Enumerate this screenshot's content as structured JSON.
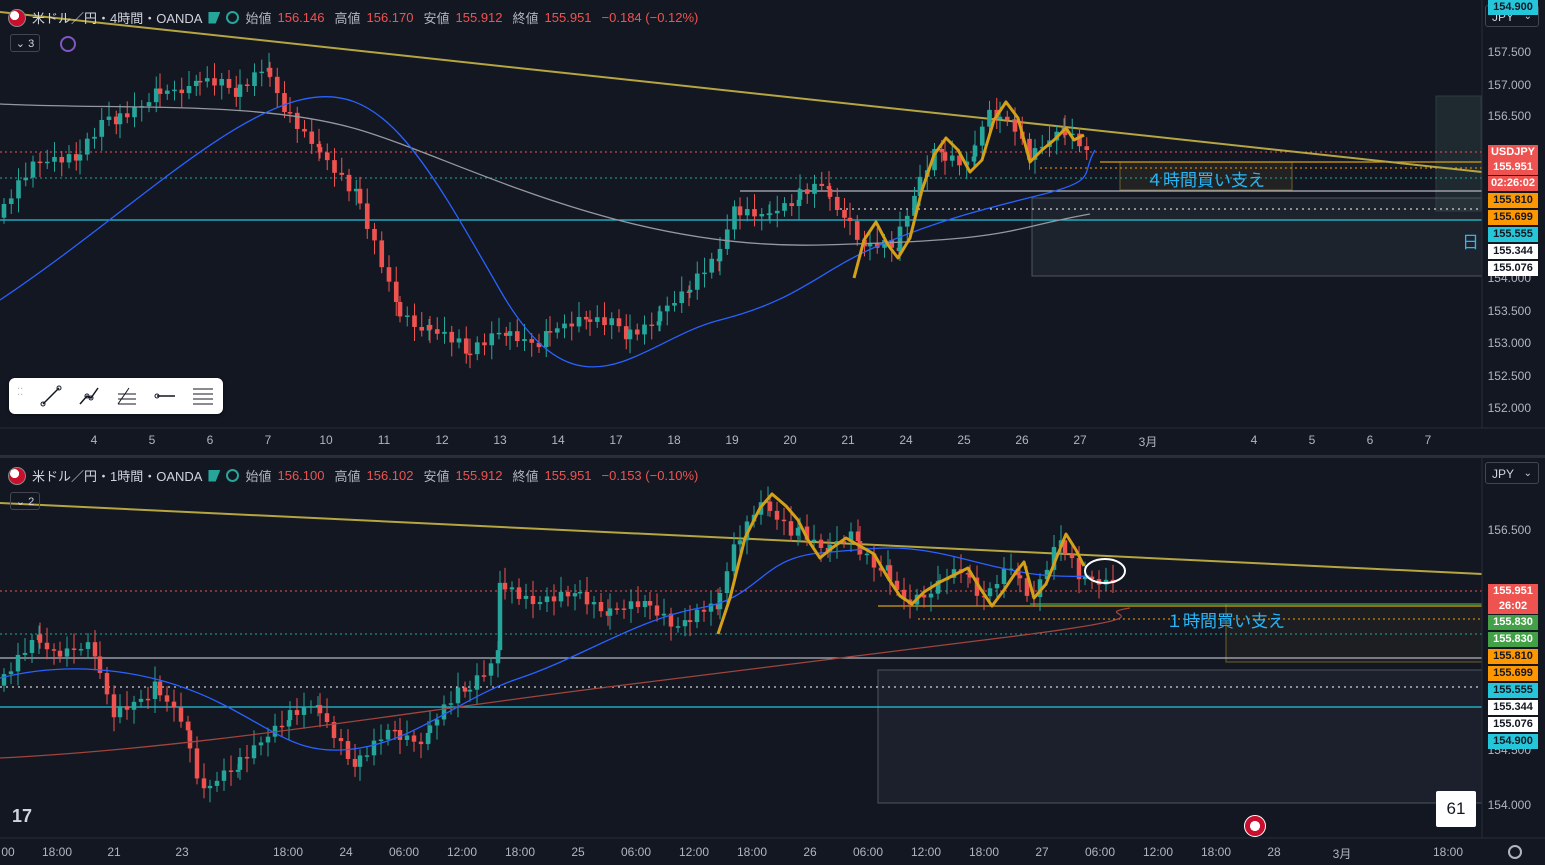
{
  "top_chart": {
    "symbol": "米ドル／円・4時間・OANDA",
    "open_label": "始値",
    "open": "156.146",
    "high_label": "高値",
    "high": "156.170",
    "low_label": "安値",
    "low": "155.912",
    "close_label": "終値",
    "close": "155.951",
    "change": "−0.184 (−0.12%)",
    "indicator_count": "3",
    "currency": "JPY",
    "price_axis": [
      "157.500",
      "157.000",
      "156.500",
      "154.000",
      "153.500",
      "153.000",
      "152.500",
      "152.000"
    ],
    "price_tags": [
      {
        "text": "USDJPY",
        "color": "#ef5350"
      },
      {
        "text": "155.951",
        "color": "#ef5350"
      },
      {
        "text": "02:26:02",
        "color": "#ef5350"
      },
      {
        "text": "155.810",
        "color": "#ff9800"
      },
      {
        "text": "155.699",
        "color": "#ff9800"
      },
      {
        "text": "155.555",
        "color": "#26c6da"
      },
      {
        "text": "155.344",
        "color": "#ffffff"
      },
      {
        "text": "155.076",
        "color": "#ffffff"
      },
      {
        "text": "154.900",
        "color": "#26c6da"
      }
    ],
    "time_axis": [
      "4",
      "5",
      "6",
      "7",
      "10",
      "11",
      "12",
      "13",
      "14",
      "17",
      "18",
      "19",
      "20",
      "21",
      "24",
      "25",
      "26",
      "27",
      "3月",
      "4",
      "5",
      "6",
      "7"
    ],
    "annotation": "４時間買い支え",
    "partial_label": "日"
  },
  "bottom_chart": {
    "symbol": "米ドル／円・1時間・OANDA",
    "open_label": "始値",
    "open": "156.100",
    "high_label": "高値",
    "high": "156.102",
    "low_label": "安値",
    "low": "155.912",
    "close_label": "終値",
    "close": "155.951",
    "change": "−0.153 (−0.10%)",
    "indicator_count": "2",
    "currency": "JPY",
    "price_axis": [
      "156.500",
      "154.500",
      "154.000"
    ],
    "price_tags": [
      {
        "text": "155.951",
        "color": "#ef5350"
      },
      {
        "text": "26:02",
        "color": "#ef5350"
      },
      {
        "text": "155.830",
        "color": "#43a047"
      },
      {
        "text": "155.830",
        "color": "#43a047"
      },
      {
        "text": "155.810",
        "color": "#ff9800"
      },
      {
        "text": "155.699",
        "color": "#ff9800"
      },
      {
        "text": "155.555",
        "color": "#26c6da"
      },
      {
        "text": "155.344",
        "color": "#ffffff"
      },
      {
        "text": "155.076",
        "color": "#ffffff"
      },
      {
        "text": "154.900",
        "color": "#26c6da"
      }
    ],
    "time_axis": [
      "00",
      "18:00",
      "21",
      "23",
      "18:00",
      "24",
      "06:00",
      "12:00",
      "18:00",
      "25",
      "06:00",
      "12:00",
      "18:00",
      "26",
      "06:00",
      "12:00",
      "18:00",
      "27",
      "06:00",
      "12:00",
      "18:00",
      "28",
      "3月",
      "18:00"
    ],
    "annotation": "１時間買い支え",
    "bar_count": "61"
  },
  "logo": "17",
  "colors": {
    "up": "#26a69a",
    "down": "#ef5350",
    "trend": "#b5a642",
    "ma_fast": "#2962ff",
    "ma_slow": "#9598a1",
    "highlight": "#d4a017"
  }
}
